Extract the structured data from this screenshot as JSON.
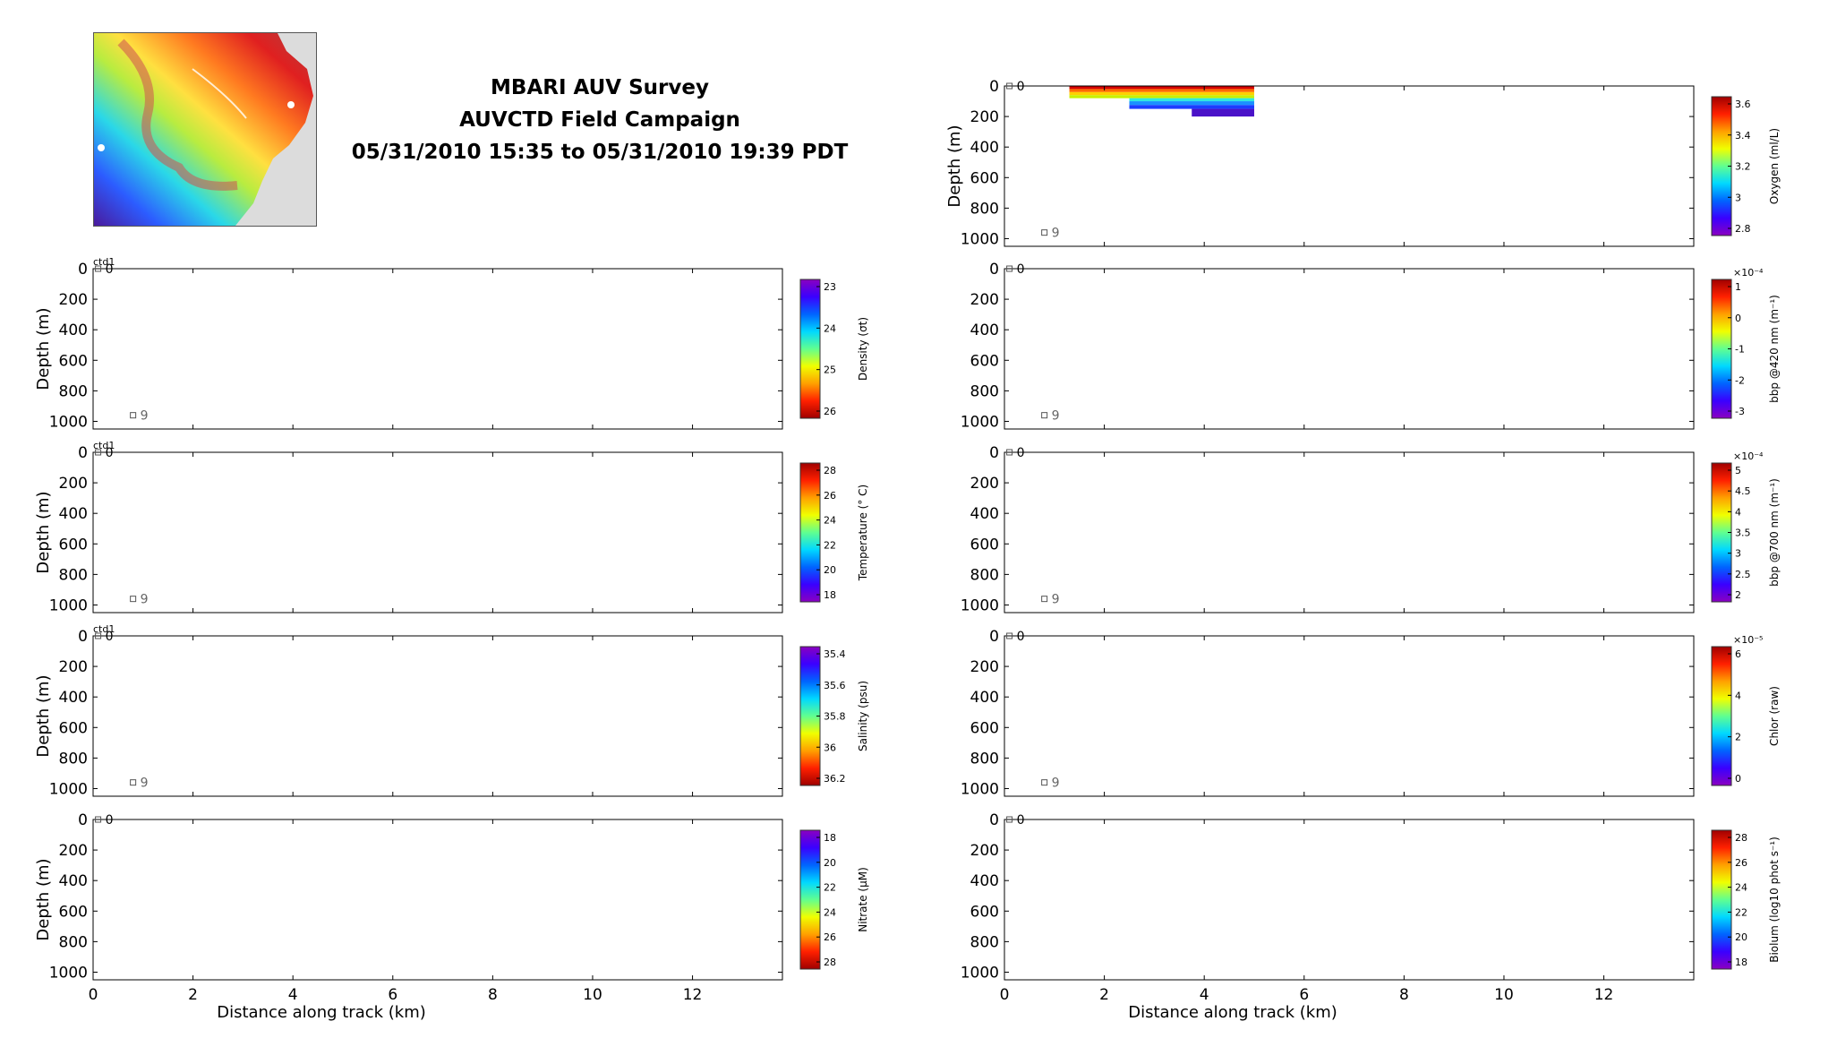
{
  "title": {
    "line1": "MBARI AUV Survey",
    "line2": "AUVCTD Field Campaign",
    "line3": "05/31/2010 15:35 to 05/31/2010 19:39 PDT"
  },
  "chart_data": [
    {
      "id": "density",
      "type": "heatmap",
      "column": "left",
      "tag": "ctd1",
      "ylabel": "Depth (m)",
      "ylim": [
        0,
        1050
      ],
      "yticks": [
        0,
        200,
        400,
        600,
        800,
        1000
      ],
      "xlim": [
        0,
        13.8
      ],
      "xticks": [
        0,
        2,
        4,
        6,
        8,
        10,
        12
      ],
      "xlabel": "",
      "colorbar": {
        "label": "Density (σt)",
        "ticks": [
          "23",
          "24",
          "25",
          "26"
        ],
        "reversed": true
      },
      "markers": [
        {
          "label": "0",
          "x": 0.1,
          "depth": 0
        },
        {
          "label": "9",
          "x": 0.8,
          "depth": 960
        }
      ],
      "segments": []
    },
    {
      "id": "temperature",
      "type": "heatmap",
      "column": "left",
      "tag": "ctd1",
      "ylabel": "Depth (m)",
      "ylim": [
        0,
        1050
      ],
      "yticks": [
        0,
        200,
        400,
        600,
        800,
        1000
      ],
      "xlim": [
        0,
        13.8
      ],
      "xticks": [
        0,
        2,
        4,
        6,
        8,
        10,
        12
      ],
      "xlabel": "",
      "colorbar": {
        "label": "Temperature (° C)",
        "ticks": [
          "28",
          "26",
          "24",
          "22",
          "20",
          "18"
        ],
        "reversed": false
      },
      "markers": [
        {
          "label": "0",
          "x": 0.1,
          "depth": 0
        },
        {
          "label": "9",
          "x": 0.8,
          "depth": 960
        }
      ],
      "segments": []
    },
    {
      "id": "salinity",
      "type": "heatmap",
      "column": "left",
      "tag": "ctd1",
      "ylabel": "Depth (m)",
      "ylim": [
        0,
        1050
      ],
      "yticks": [
        0,
        200,
        400,
        600,
        800,
        1000
      ],
      "xlim": [
        0,
        13.8
      ],
      "xticks": [
        0,
        2,
        4,
        6,
        8,
        10,
        12
      ],
      "xlabel": "",
      "colorbar": {
        "label": "Salinity (psu)",
        "ticks": [
          "35.4",
          "35.6",
          "35.8",
          "36",
          "36.2"
        ],
        "reversed": true
      },
      "markers": [
        {
          "label": "0",
          "x": 0.1,
          "depth": 0
        },
        {
          "label": "9",
          "x": 0.8,
          "depth": 960
        }
      ],
      "segments": []
    },
    {
      "id": "nitrate",
      "type": "heatmap",
      "column": "left",
      "tag": "",
      "ylabel": "Depth (m)",
      "ylim": [
        0,
        1050
      ],
      "yticks": [
        0,
        200,
        400,
        600,
        800,
        1000
      ],
      "xlim": [
        0,
        13.8
      ],
      "xticks": [
        0,
        2,
        4,
        6,
        8,
        10,
        12
      ],
      "xlabel": "Distance along track (km)",
      "colorbar": {
        "label": "Nitrate (µM)",
        "ticks": [
          "18",
          "20",
          "22",
          "24",
          "26",
          "28"
        ],
        "reversed": true
      },
      "markers": [
        {
          "label": "0",
          "x": 0.1,
          "depth": 0
        }
      ],
      "segments": []
    },
    {
      "id": "oxygen",
      "type": "heatmap",
      "column": "right",
      "tag": "",
      "ylabel": "Depth (m)",
      "ylim": [
        0,
        1050
      ],
      "yticks": [
        0,
        200,
        400,
        600,
        800,
        1000
      ],
      "xlim": [
        0,
        13.8
      ],
      "xticks": [
        0,
        2,
        4,
        6,
        8,
        10,
        12
      ],
      "xlabel": "",
      "colorbar": {
        "label": "Oxygen (ml/L)",
        "ticks": [
          "3.6",
          "3.4",
          "3.2",
          "3",
          "2.8"
        ],
        "reversed": false
      },
      "markers": [
        {
          "label": "0",
          "x": 0.1,
          "depth": 0
        },
        {
          "label": "9",
          "x": 0.8,
          "depth": 960
        }
      ],
      "segments": [
        {
          "x0": 1.3,
          "x1": 5.0,
          "d0": 0,
          "d1": 20,
          "color": "#d50000"
        },
        {
          "x0": 1.3,
          "x1": 5.0,
          "d0": 20,
          "d1": 40,
          "color": "#ff6a00"
        },
        {
          "x0": 1.3,
          "x1": 5.0,
          "d0": 40,
          "d1": 60,
          "color": "#ffd000"
        },
        {
          "x0": 1.3,
          "x1": 5.0,
          "d0": 60,
          "d1": 80,
          "color": "#c8f000"
        },
        {
          "x0": 2.5,
          "x1": 5.0,
          "d0": 80,
          "d1": 100,
          "color": "#30e8e0"
        },
        {
          "x0": 2.5,
          "x1": 5.0,
          "d0": 100,
          "d1": 125,
          "color": "#1a90ff"
        },
        {
          "x0": 2.5,
          "x1": 5.0,
          "d0": 125,
          "d1": 150,
          "color": "#1c3cff"
        },
        {
          "x0": 3.75,
          "x1": 5.0,
          "d0": 150,
          "d1": 200,
          "color": "#4a12c8"
        }
      ]
    },
    {
      "id": "bbp420",
      "type": "heatmap",
      "column": "right",
      "tag": "",
      "ylabel": "",
      "ylim": [
        0,
        1050
      ],
      "yticks": [
        0,
        200,
        400,
        600,
        800,
        1000
      ],
      "xlim": [
        0,
        13.8
      ],
      "xticks": [
        0,
        2,
        4,
        6,
        8,
        10,
        12
      ],
      "xlabel": "",
      "colorbar": {
        "label": "bbp @420 nm (m⁻¹)",
        "ticks": [
          "1",
          "0",
          "-1",
          "-2",
          "-3"
        ],
        "reversed": false,
        "exponent": "×10⁻⁴"
      },
      "markers": [
        {
          "label": "0",
          "x": 0.1,
          "depth": 0
        },
        {
          "label": "9",
          "x": 0.8,
          "depth": 960
        }
      ],
      "segments": []
    },
    {
      "id": "bbp700",
      "type": "heatmap",
      "column": "right",
      "tag": "",
      "ylabel": "",
      "ylim": [
        0,
        1050
      ],
      "yticks": [
        0,
        200,
        400,
        600,
        800,
        1000
      ],
      "xlim": [
        0,
        13.8
      ],
      "xticks": [
        0,
        2,
        4,
        6,
        8,
        10,
        12
      ],
      "xlabel": "",
      "colorbar": {
        "label": "bbp @700 nm (m⁻¹)",
        "ticks": [
          "5",
          "4.5",
          "4",
          "3.5",
          "3",
          "2.5",
          "2"
        ],
        "reversed": false,
        "exponent": "×10⁻⁴"
      },
      "markers": [
        {
          "label": "0",
          "x": 0.1,
          "depth": 0
        },
        {
          "label": "9",
          "x": 0.8,
          "depth": 960
        }
      ],
      "segments": []
    },
    {
      "id": "chlor",
      "type": "heatmap",
      "column": "right",
      "tag": "",
      "ylabel": "",
      "ylim": [
        0,
        1050
      ],
      "yticks": [
        0,
        200,
        400,
        600,
        800,
        1000
      ],
      "xlim": [
        0,
        13.8
      ],
      "xticks": [
        0,
        2,
        4,
        6,
        8,
        10,
        12
      ],
      "xlabel": "",
      "colorbar": {
        "label": "Chlor (raw)",
        "ticks": [
          "6",
          "4",
          "2",
          "0"
        ],
        "reversed": false,
        "exponent": "×10⁻⁵"
      },
      "markers": [
        {
          "label": "0",
          "x": 0.1,
          "depth": 0
        },
        {
          "label": "9",
          "x": 0.8,
          "depth": 960
        }
      ],
      "segments": []
    },
    {
      "id": "biolum",
      "type": "heatmap",
      "column": "right",
      "tag": "",
      "ylabel": "",
      "ylim": [
        0,
        1050
      ],
      "yticks": [
        0,
        200,
        400,
        600,
        800,
        1000
      ],
      "xlim": [
        0,
        13.8
      ],
      "xticks": [
        0,
        2,
        4,
        6,
        8,
        10,
        12
      ],
      "xlabel": "Distance along track (km)",
      "colorbar": {
        "label": "Biolum (log10 phot s⁻¹)",
        "ticks": [
          "28",
          "26",
          "24",
          "22",
          "20",
          "18"
        ],
        "reversed": false
      },
      "markers": [
        {
          "label": "0",
          "x": 0.1,
          "depth": 0
        }
      ],
      "segments": []
    }
  ]
}
